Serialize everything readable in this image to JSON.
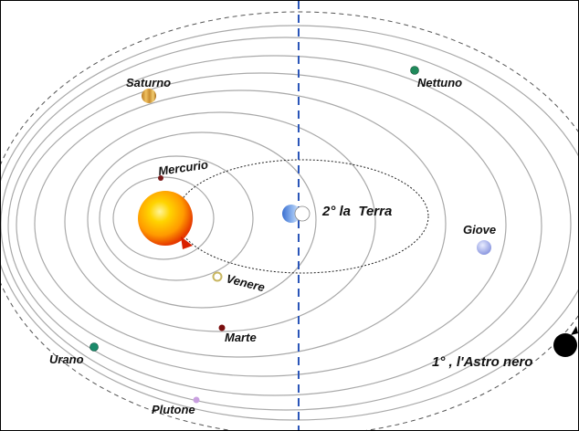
{
  "labels": {
    "saturno": "Saturno",
    "nettuno": "Nettuno",
    "mercurio": "Mercurio",
    "terra": "2° la  Terra",
    "giove": "Giove",
    "venere": "Venere",
    "marte": "Marte",
    "urano": "Urano",
    "plutone": "Plutone",
    "astro_nero": "1° , l'Astro nero"
  },
  "colors": {
    "axis": "#2a55b8",
    "orbit": "#aaaaaa",
    "dashed_orbit": "#555555",
    "sun_core": "#ffef4a",
    "sun_mid": "#ffb000",
    "sun_edge": "#e23a00",
    "saturno": "#d9a23a",
    "nettuno": "#1f8a5b",
    "mercurio": "#7a1a1a",
    "terra": "#5b8fe0",
    "giove": "#a8b4f0",
    "venere": "#c8b660",
    "marte": "#7a0f0f",
    "urano": "#1a8a6a",
    "plutone": "#c9a0e0",
    "astro_nero": "#000000"
  },
  "icons": {
    "sun": "sun-icon",
    "black_star": "black-star-icon"
  }
}
